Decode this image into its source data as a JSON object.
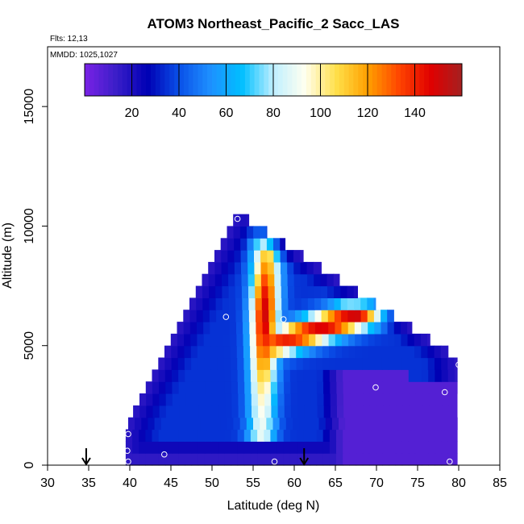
{
  "chart_data": {
    "type": "heatmap",
    "title": "ATOM3 Northeast_Pacific_2 Sacc_LAS",
    "flights_label": "Flts: 12,13",
    "dates_label": "MMDD: 1025,1027",
    "xlabel": "Latitude (deg N)",
    "ylabel": "Altitude (m)",
    "xlim": [
      30,
      85
    ],
    "ylim": [
      0,
      17500
    ],
    "x_ticks": [
      "30",
      "35",
      "40",
      "45",
      "50",
      "55",
      "60",
      "65",
      "70",
      "75",
      "80",
      "85"
    ],
    "y_ticks": [
      "0",
      "5000",
      "10000",
      "15000"
    ],
    "colorbar": {
      "range": [
        0,
        160
      ],
      "ticks": [
        "20",
        "40",
        "60",
        "80",
        "100",
        "120",
        "140"
      ],
      "colors": [
        "#7a22e6",
        "#3a1ec8",
        "#0000b4",
        "#0a50e8",
        "#1e90ff",
        "#00bfff",
        "#bfefff",
        "#fffff0",
        "#ffe04a",
        "#ffa000",
        "#ff4500",
        "#e00000",
        "#a52020"
      ]
    },
    "surface_markers_lat": [
      34.7,
      61.2
    ],
    "sample_points": [
      {
        "lat": 53.1,
        "alt": 10300
      },
      {
        "lat": 51.7,
        "alt": 6200
      },
      {
        "lat": 58.7,
        "alt": 6100
      },
      {
        "lat": 80.0,
        "alt": 4200
      },
      {
        "lat": 69.9,
        "alt": 3250
      },
      {
        "lat": 78.3,
        "alt": 3050
      },
      {
        "lat": 39.8,
        "alt": 1300
      },
      {
        "lat": 39.7,
        "alt": 600
      },
      {
        "lat": 44.2,
        "alt": 450
      },
      {
        "lat": 39.8,
        "alt": 150
      },
      {
        "lat": 57.6,
        "alt": 150
      },
      {
        "lat": 78.9,
        "alt": 150
      }
    ],
    "field": {
      "description_ranges": "values in colorbar units",
      "v_core": 150,
      "v_edge": 35,
      "v_apex": 5,
      "v_east_plume": 8
    }
  }
}
